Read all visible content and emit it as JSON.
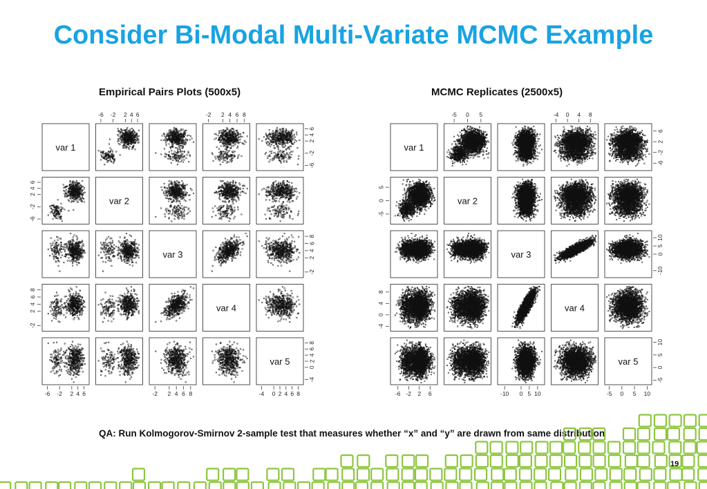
{
  "slide": {
    "title": "Consider Bi-Modal Multi-Variate MCMC Example",
    "qa": "QA:  Run Kolmogorov-Smirnov 2-sample test that measures whether “x” and “y” are drawn from same distribution",
    "page_number": "19",
    "accent_color": "#19a3e2",
    "decoration_color": "#8cc63f"
  },
  "chart_data": [
    {
      "type": "scatter",
      "title": "Empirical Pairs Plots (500x5)",
      "variables": [
        "var 1",
        "var 2",
        "var 3",
        "var 4",
        "var 5"
      ],
      "n_points": 500,
      "ranges": [
        [
          -7,
          7
        ],
        [
          -7,
          7
        ],
        [
          -3,
          9
        ],
        [
          -3,
          9
        ],
        [
          -5,
          9
        ]
      ],
      "tick_labels": [
        [
          "-6",
          "-2",
          "2",
          "4",
          "6"
        ],
        [
          "-6",
          "-2",
          "2",
          "4",
          "6"
        ],
        [
          "-2",
          "2",
          "4",
          "6",
          "8"
        ],
        [
          "-2",
          "2",
          "4",
          "6",
          "8"
        ],
        [
          "-4",
          "0",
          "2",
          "4",
          "6",
          "8"
        ]
      ],
      "tick_values": [
        [
          -6,
          -2,
          2,
          4,
          6
        ],
        [
          -6,
          -2,
          2,
          4,
          6
        ],
        [
          -2,
          2,
          4,
          6,
          8
        ],
        [
          -2,
          2,
          4,
          6,
          8
        ],
        [
          -4,
          0,
          2,
          4,
          6,
          8
        ]
      ],
      "modes": [
        {
          "weight": 0.78,
          "mean": [
            3,
            3,
            4,
            4,
            2.5
          ],
          "sd": [
            1.3,
            1.5,
            1.6,
            1.6,
            2.4
          ]
        },
        {
          "weight": 0.22,
          "mean": [
            -3,
            -3.5,
            4,
            3,
            2.5
          ],
          "sd": [
            1.1,
            1.3,
            1.6,
            1.6,
            2.4
          ]
        }
      ],
      "correlations": [
        {
          "pair": [
            2,
            3
          ],
          "r": 0.55
        }
      ]
    },
    {
      "type": "scatter",
      "title": "MCMC Replicates (2500x5)",
      "variables": [
        "var 1",
        "var 2",
        "var 3",
        "var 4",
        "var 5"
      ],
      "n_points": 2500,
      "ranges": [
        [
          -8,
          8
        ],
        [
          -8,
          8
        ],
        [
          -13,
          13
        ],
        [
          -5,
          10
        ],
        [
          -6,
          11
        ]
      ],
      "tick_labels": [
        [
          "-5",
          "0",
          "5"
        ],
        [
          "-5",
          "0",
          "5"
        ],
        [
          "-10",
          "0",
          "5",
          "10"
        ],
        [
          "-4",
          "0",
          "4",
          "8"
        ],
        [
          "-5",
          "0",
          "5",
          "10"
        ]
      ],
      "tick_values": [
        [
          -5,
          0,
          5
        ],
        [
          -5,
          0,
          5
        ],
        [
          -10,
          0,
          5,
          10
        ],
        [
          -4,
          0,
          4,
          8
        ],
        [
          -5,
          0,
          5,
          10
        ]
      ],
      "extra_tick_labels": {
        "col0_bottom": [
          "-6",
          "-2",
          "2",
          "6"
        ],
        "col0_bottom_values": [
          -6,
          -2,
          2,
          6
        ],
        "row0_right": [
          "-6",
          "-2",
          "2",
          "6"
        ],
        "row0_right_values": [
          -6,
          -2,
          2,
          6
        ]
      },
      "modes": [
        {
          "weight": 0.8,
          "mean": [
            2,
            2,
            3,
            3,
            2.5
          ],
          "sd": [
            2.0,
            2.2,
            2.6,
            2.6,
            2.8
          ]
        },
        {
          "weight": 0.2,
          "mean": [
            -2.5,
            -3,
            3,
            3,
            2.5
          ],
          "sd": [
            1.5,
            1.6,
            2.6,
            2.6,
            2.8
          ]
        }
      ],
      "correlations": [
        {
          "pair": [
            2,
            3
          ],
          "r": 0.85
        }
      ]
    }
  ]
}
